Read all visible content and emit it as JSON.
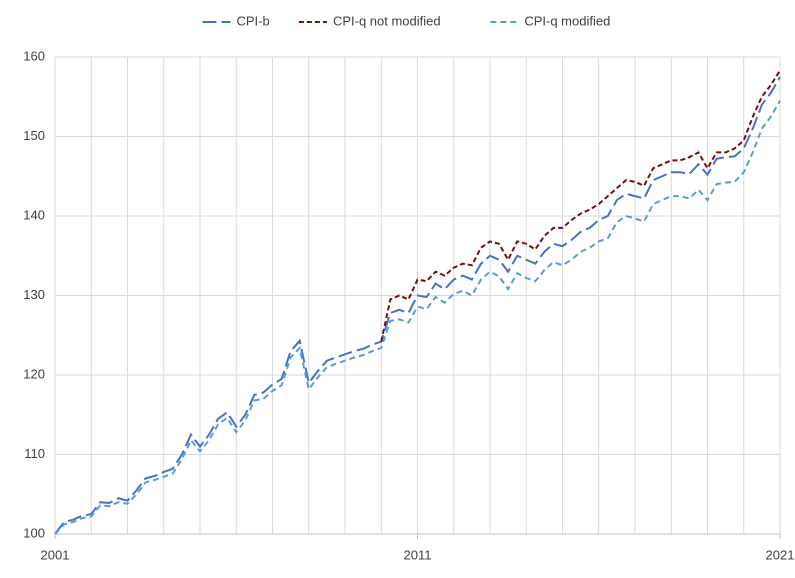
{
  "chart_data": {
    "type": "line",
    "x": [
      2001,
      2001.25,
      2001.5,
      2001.75,
      2002,
      2002.25,
      2002.5,
      2002.75,
      2003,
      2003.25,
      2003.5,
      2003.75,
      2004,
      2004.25,
      2004.5,
      2004.75,
      2005,
      2005.25,
      2005.5,
      2005.75,
      2006,
      2006.25,
      2006.5,
      2006.75,
      2007,
      2007.25,
      2007.5,
      2007.75,
      2008,
      2008.25,
      2008.5,
      2008.75,
      2009,
      2009.25,
      2009.5,
      2009.75,
      2010,
      2010.25,
      2010.5,
      2010.75,
      2011,
      2011.25,
      2011.5,
      2011.75,
      2012,
      2012.25,
      2012.5,
      2012.75,
      2013,
      2013.25,
      2013.5,
      2013.75,
      2014,
      2014.25,
      2014.5,
      2014.75,
      2015,
      2015.25,
      2015.5,
      2015.75,
      2016,
      2016.25,
      2016.5,
      2016.75,
      2017,
      2017.25,
      2017.5,
      2017.75,
      2018,
      2018.25,
      2018.5,
      2018.75,
      2019,
      2019.25,
      2019.5,
      2019.75,
      2020,
      2020.25,
      2020.5,
      2020.75,
      2021
    ],
    "series": [
      {
        "name": "CPI-b",
        "color": "#4472c4",
        "values": [
          100,
          101.5,
          101.8,
          102.3,
          102.5,
          104,
          103.9,
          104.5,
          104.2,
          105.5,
          107,
          107.3,
          107.8,
          108.2,
          110,
          112.5,
          111,
          112.5,
          114.5,
          115.3,
          113.5,
          115,
          117.5,
          117.8,
          118.8,
          119.5,
          123,
          124.3,
          119,
          120.5,
          121.8,
          122.2,
          122.6,
          123,
          123.3,
          123.8,
          124.2,
          127.8,
          128.2,
          127.8,
          130,
          129.8,
          131.5,
          130.8,
          132,
          132.5,
          132,
          134,
          135,
          134.5,
          133,
          135,
          134.5,
          134,
          135.5,
          136.5,
          136.2,
          137,
          138,
          138.5,
          139.5,
          140,
          142,
          142.8,
          142.5,
          142.2,
          144.5,
          145,
          145.5,
          145.5,
          145.3,
          146.5,
          145.2,
          147.2,
          147.4,
          147.5,
          148.5,
          151,
          154,
          155.5,
          157.5
        ]
      },
      {
        "name": "CPI-q not modified",
        "color": "#7b0c0c",
        "values": [
          null,
          null,
          null,
          null,
          null,
          null,
          null,
          null,
          null,
          null,
          null,
          null,
          null,
          null,
          null,
          null,
          null,
          null,
          null,
          null,
          null,
          null,
          null,
          null,
          null,
          null,
          null,
          null,
          null,
          null,
          null,
          null,
          null,
          null,
          null,
          null,
          124.2,
          129.5,
          130,
          129.5,
          132,
          131.8,
          133,
          132.5,
          133.5,
          134,
          133.8,
          136,
          136.8,
          136.5,
          134.5,
          136.8,
          136.5,
          135.8,
          137.5,
          138.5,
          138.5,
          139.5,
          140.3,
          140.8,
          141.5,
          142.5,
          143.5,
          144.5,
          144.3,
          143.8,
          146,
          146.5,
          147,
          147,
          147.4,
          148,
          146,
          148,
          148,
          148.5,
          149.5,
          152.5,
          155,
          156.5,
          158.3
        ]
      },
      {
        "name": "CPI-q modified",
        "color": "#5b9bd5",
        "values": [
          100,
          101.2,
          101.5,
          102,
          102.2,
          103.6,
          103.5,
          104,
          103.8,
          105,
          106.5,
          106.8,
          107.2,
          107.6,
          109.4,
          111.8,
          110.4,
          111.8,
          113.8,
          114.6,
          112.8,
          114.3,
          116.8,
          117,
          118,
          118.7,
          122.2,
          123.4,
          118.2,
          119.7,
          121,
          121.4,
          121.8,
          122.2,
          122.5,
          123,
          123.4,
          126.8,
          127,
          126.6,
          128.6,
          128.3,
          129.8,
          129.1,
          130.2,
          130.6,
          130,
          132,
          133,
          132.4,
          130.8,
          132.8,
          132.2,
          131.8,
          133.2,
          134.2,
          133.8,
          134.5,
          135.5,
          136,
          136.8,
          137.2,
          139.2,
          140,
          139.7,
          139.3,
          141.5,
          142,
          142.5,
          142.5,
          142.2,
          143.3,
          142,
          144,
          144.2,
          144.3,
          145.5,
          148,
          151,
          152.5,
          154.5
        ]
      }
    ],
    "xlim": [
      2001,
      2021
    ],
    "xticks": [
      2001,
      2011,
      2021
    ],
    "x_gridlines": [
      2001,
      2002,
      2003,
      2004,
      2005,
      2006,
      2007,
      2008,
      2009,
      2010,
      2011,
      2012,
      2013,
      2014,
      2015,
      2016,
      2017,
      2018,
      2019,
      2020,
      2021
    ],
    "ylim": [
      100,
      160
    ],
    "yticks": [
      100,
      110,
      120,
      130,
      140,
      150,
      160
    ],
    "grid": true,
    "legend": "top"
  }
}
